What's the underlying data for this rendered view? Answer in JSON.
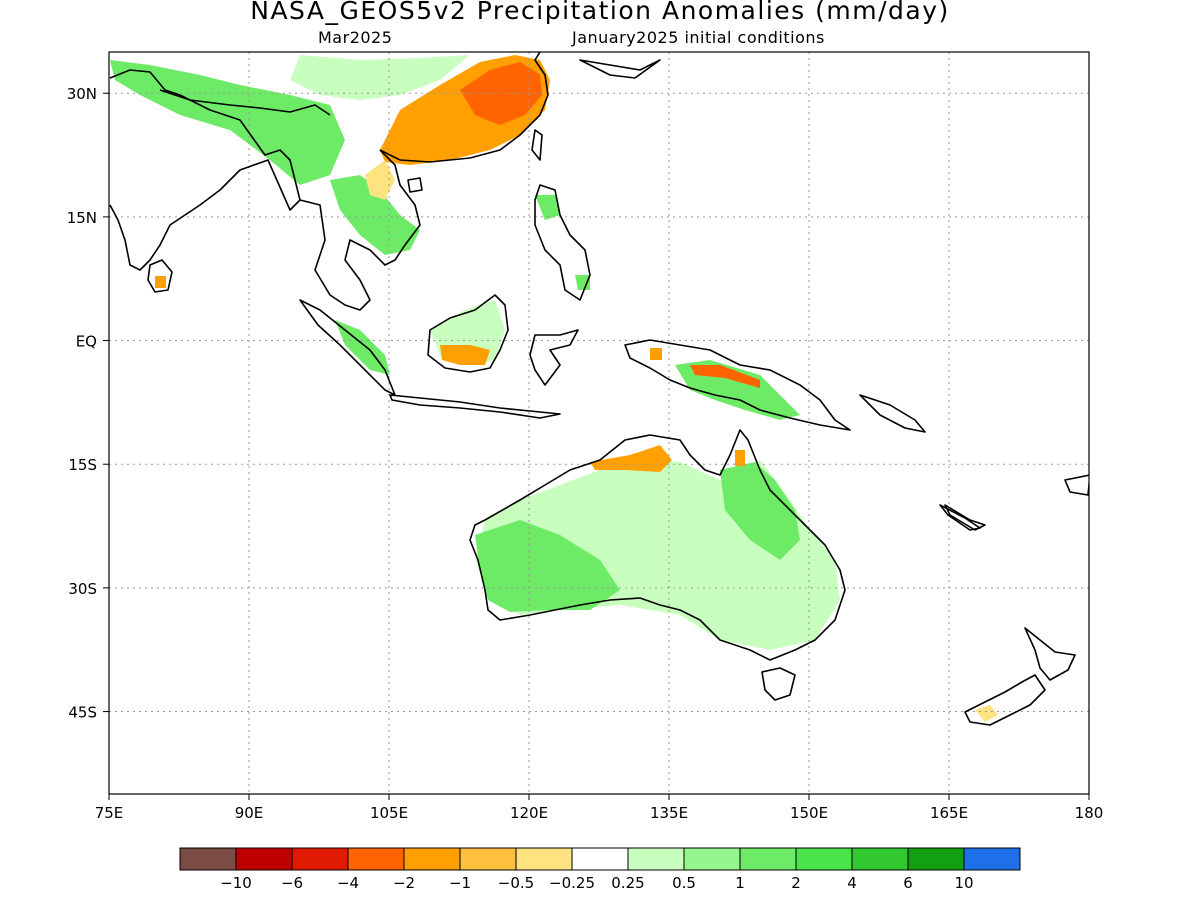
{
  "title": "NASA_GEOS5v2 Precipitation Anomalies (mm/day)",
  "subtitle_left": "Mar2025",
  "subtitle_right": "January2025 initial conditions",
  "map": {
    "lon_range": [
      75,
      180
    ],
    "lat_range": [
      -55,
      35
    ],
    "gridlines": true,
    "lon_ticks": [
      {
        "value": 75,
        "label": "75E"
      },
      {
        "value": 90,
        "label": "90E"
      },
      {
        "value": 105,
        "label": "105E"
      },
      {
        "value": 120,
        "label": "120E"
      },
      {
        "value": 135,
        "label": "135E"
      },
      {
        "value": 150,
        "label": "150E"
      },
      {
        "value": 165,
        "label": "165E"
      },
      {
        "value": 180,
        "label": "180"
      }
    ],
    "lat_ticks": [
      {
        "value": 30,
        "label": "30N"
      },
      {
        "value": 15,
        "label": "15N"
      },
      {
        "value": 0,
        "label": "EQ"
      },
      {
        "value": -15,
        "label": "15S"
      },
      {
        "value": -30,
        "label": "30S"
      },
      {
        "value": -45,
        "label": "45S"
      }
    ]
  },
  "colorbar": {
    "colors": [
      "#7a4c43",
      "#c00000",
      "#e01a00",
      "#ff6400",
      "#ffa000",
      "#ffc040",
      "#ffe380",
      "#ffffff",
      "#c8ffbe",
      "#96f58c",
      "#6eeb66",
      "#4ae34a",
      "#32c832",
      "#12a012",
      "#1f6fe8"
    ],
    "labels": [
      "−10",
      "−6",
      "−4",
      "−2",
      "−1",
      "−0.5",
      "−0.25",
      "0.25",
      "0.5",
      "1",
      "2",
      "4",
      "6",
      "10"
    ]
  },
  "colors": {
    "coast": "#000000",
    "grid": "#999999",
    "dry_strong": "#ff6400",
    "dry": "#ffa000",
    "dry_light": "#ffe380",
    "wet_light": "#c8ffbe",
    "wet": "#6eeb66"
  }
}
